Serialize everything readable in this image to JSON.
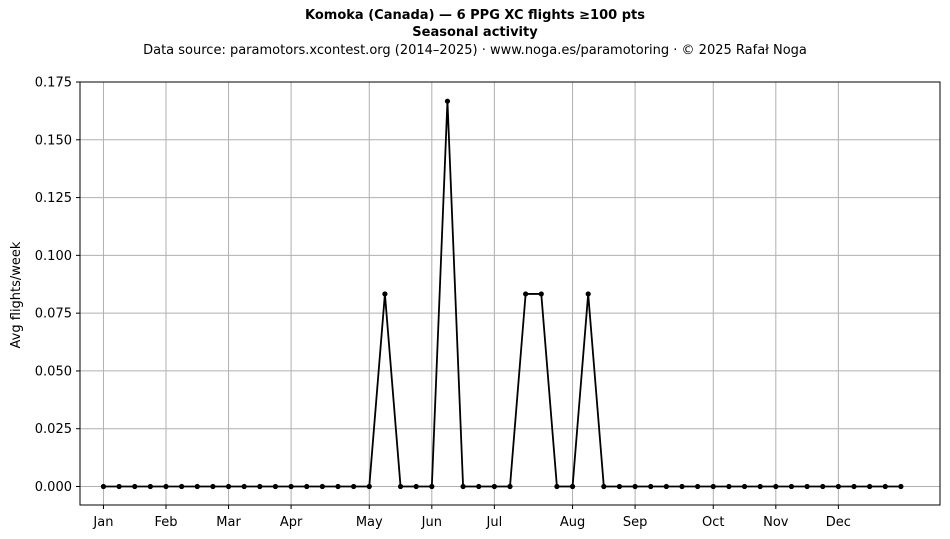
{
  "header": {
    "title": "Komoka (Canada)  —  6 PPG XC flights ≥100 pts",
    "subtitle": "Seasonal activity",
    "source": "Data source: paramotors.xcontest.org (2014–2025)  ·  www.noga.es/paramotoring  ·  © 2025 Rafał Noga"
  },
  "chart_data": {
    "type": "line",
    "title": "Komoka (Canada)  —  6 PPG XC flights ≥100 pts",
    "subtitle": "Seasonal activity",
    "xlabel": "",
    "ylabel": "Avg flights/week",
    "ylim": [
      -0.008,
      0.175
    ],
    "xlim": [
      -1.5,
      53.5
    ],
    "grid": true,
    "line_color": "#000000",
    "grid_color": "#b0b0b0",
    "x_ticks": [
      {
        "label": "Jan",
        "week": 0
      },
      {
        "label": "Feb",
        "week": 4
      },
      {
        "label": "Mar",
        "week": 8
      },
      {
        "label": "Apr",
        "week": 12
      },
      {
        "label": "May",
        "week": 17
      },
      {
        "label": "Jun",
        "week": 21
      },
      {
        "label": "Jul",
        "week": 25
      },
      {
        "label": "Aug",
        "week": 30
      },
      {
        "label": "Sep",
        "week": 34
      },
      {
        "label": "Oct",
        "week": 39
      },
      {
        "label": "Nov",
        "week": 43
      },
      {
        "label": "Dec",
        "week": 47
      }
    ],
    "y_ticks": [
      "0.000",
      "0.025",
      "0.050",
      "0.075",
      "0.100",
      "0.125",
      "0.150",
      "0.175"
    ],
    "y_tick_values": [
      0,
      0.025,
      0.05,
      0.075,
      0.1,
      0.125,
      0.15,
      0.175
    ],
    "x": [
      0,
      1,
      2,
      3,
      4,
      5,
      6,
      7,
      8,
      9,
      10,
      11,
      12,
      13,
      14,
      15,
      16,
      17,
      18,
      19,
      20,
      21,
      22,
      23,
      24,
      25,
      26,
      27,
      28,
      29,
      30,
      31,
      32,
      33,
      34,
      35,
      36,
      37,
      38,
      39,
      40,
      41,
      42,
      43,
      44,
      45,
      46,
      47,
      48,
      49,
      50,
      51
    ],
    "values": [
      0,
      0,
      0,
      0,
      0,
      0,
      0,
      0,
      0,
      0,
      0,
      0,
      0,
      0,
      0,
      0,
      0,
      0,
      0.0833,
      0,
      0,
      0,
      0.1667,
      0,
      0,
      0,
      0,
      0.0833,
      0.0833,
      0,
      0,
      0.0833,
      0,
      0,
      0,
      0,
      0,
      0,
      0,
      0,
      0,
      0,
      0,
      0,
      0,
      0,
      0,
      0,
      0,
      0,
      0,
      0
    ]
  }
}
